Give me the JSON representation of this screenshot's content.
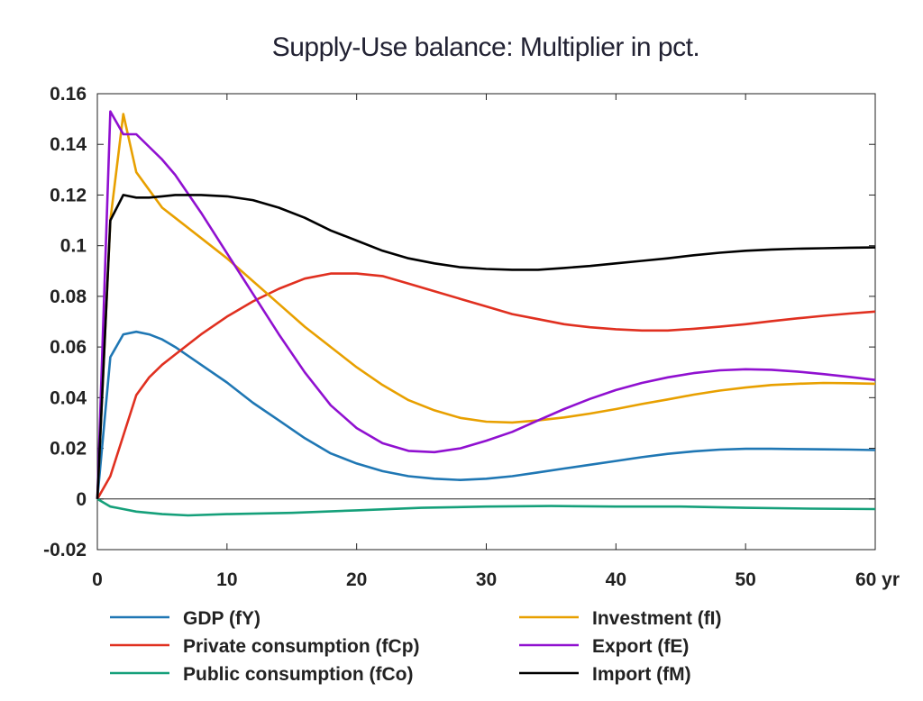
{
  "chart_data": {
    "type": "line",
    "title": "Supply-Use balance: Multiplier in pct.",
    "xlabel": "",
    "ylabel": "",
    "x_unit_label": "yr",
    "xlim": [
      0,
      60
    ],
    "ylim": [
      -0.02,
      0.16
    ],
    "x_ticks": [
      0,
      10,
      20,
      30,
      40,
      50,
      60
    ],
    "x_tick_labels": [
      "0",
      "10",
      "20",
      "30",
      "40",
      "50",
      "60 yr"
    ],
    "y_ticks": [
      -0.02,
      0,
      0.02,
      0.04,
      0.06,
      0.08,
      0.1,
      0.12,
      0.14,
      0.16
    ],
    "y_tick_labels": [
      "-0.02",
      "0",
      "0.02",
      "0.04",
      "0.06",
      "0.08",
      "0.1",
      "0.12",
      "0.14",
      "0.16"
    ],
    "grid": false,
    "zero_line": true,
    "legend_position": "bottom, two columns",
    "series": [
      {
        "name": "GDP (fY)",
        "color": "#1f77b4",
        "points": [
          [
            0,
            0
          ],
          [
            1,
            0.056
          ],
          [
            2,
            0.065
          ],
          [
            3,
            0.066
          ],
          [
            4,
            0.065
          ],
          [
            5,
            0.063
          ],
          [
            6,
            0.06
          ],
          [
            8,
            0.053
          ],
          [
            10,
            0.046
          ],
          [
            12,
            0.038
          ],
          [
            14,
            0.031
          ],
          [
            16,
            0.024
          ],
          [
            18,
            0.018
          ],
          [
            20,
            0.014
          ],
          [
            22,
            0.011
          ],
          [
            24,
            0.009
          ],
          [
            26,
            0.008
          ],
          [
            28,
            0.0075
          ],
          [
            30,
            0.008
          ],
          [
            32,
            0.009
          ],
          [
            34,
            0.0105
          ],
          [
            36,
            0.012
          ],
          [
            38,
            0.0135
          ],
          [
            40,
            0.015
          ],
          [
            42,
            0.0165
          ],
          [
            44,
            0.0178
          ],
          [
            46,
            0.0188
          ],
          [
            48,
            0.0195
          ],
          [
            50,
            0.0198
          ],
          [
            52,
            0.0198
          ],
          [
            54,
            0.0197
          ],
          [
            56,
            0.0196
          ],
          [
            58,
            0.0195
          ],
          [
            60,
            0.0193
          ]
        ]
      },
      {
        "name": "Private consumption (fCp)",
        "color": "#e03020",
        "points": [
          [
            0,
            0
          ],
          [
            1,
            0.009
          ],
          [
            2,
            0.025
          ],
          [
            3,
            0.041
          ],
          [
            4,
            0.048
          ],
          [
            5,
            0.053
          ],
          [
            6,
            0.057
          ],
          [
            8,
            0.065
          ],
          [
            10,
            0.072
          ],
          [
            12,
            0.078
          ],
          [
            14,
            0.083
          ],
          [
            16,
            0.087
          ],
          [
            18,
            0.089
          ],
          [
            20,
            0.089
          ],
          [
            22,
            0.088
          ],
          [
            24,
            0.085
          ],
          [
            26,
            0.082
          ],
          [
            28,
            0.079
          ],
          [
            30,
            0.076
          ],
          [
            32,
            0.073
          ],
          [
            34,
            0.071
          ],
          [
            36,
            0.069
          ],
          [
            38,
            0.0678
          ],
          [
            40,
            0.067
          ],
          [
            42,
            0.0665
          ],
          [
            44,
            0.0665
          ],
          [
            46,
            0.0672
          ],
          [
            48,
            0.068
          ],
          [
            50,
            0.069
          ],
          [
            52,
            0.0702
          ],
          [
            54,
            0.0713
          ],
          [
            56,
            0.0723
          ],
          [
            58,
            0.0732
          ],
          [
            60,
            0.074
          ]
        ]
      },
      {
        "name": "Public consumption (fCo)",
        "color": "#15a07a",
        "points": [
          [
            0,
            0
          ],
          [
            1,
            -0.003
          ],
          [
            2,
            -0.004
          ],
          [
            3,
            -0.005
          ],
          [
            4,
            -0.0055
          ],
          [
            5,
            -0.006
          ],
          [
            7,
            -0.0065
          ],
          [
            10,
            -0.006
          ],
          [
            15,
            -0.0055
          ],
          [
            20,
            -0.0045
          ],
          [
            25,
            -0.0035
          ],
          [
            30,
            -0.003
          ],
          [
            35,
            -0.0028
          ],
          [
            40,
            -0.003
          ],
          [
            45,
            -0.003
          ],
          [
            50,
            -0.0035
          ],
          [
            55,
            -0.0038
          ],
          [
            60,
            -0.004
          ]
        ]
      },
      {
        "name": "Investment (fI)",
        "color": "#e8a000",
        "points": [
          [
            0,
            0
          ],
          [
            1,
            0.11
          ],
          [
            2,
            0.152
          ],
          [
            3,
            0.129
          ],
          [
            4,
            0.122
          ],
          [
            5,
            0.115
          ],
          [
            6,
            0.111
          ],
          [
            8,
            0.103
          ],
          [
            10,
            0.095
          ],
          [
            12,
            0.086
          ],
          [
            14,
            0.077
          ],
          [
            16,
            0.068
          ],
          [
            18,
            0.06
          ],
          [
            20,
            0.052
          ],
          [
            22,
            0.045
          ],
          [
            24,
            0.039
          ],
          [
            26,
            0.035
          ],
          [
            28,
            0.032
          ],
          [
            30,
            0.0305
          ],
          [
            32,
            0.0302
          ],
          [
            34,
            0.031
          ],
          [
            36,
            0.0322
          ],
          [
            38,
            0.0337
          ],
          [
            40,
            0.0355
          ],
          [
            42,
            0.0375
          ],
          [
            44,
            0.0393
          ],
          [
            46,
            0.0412
          ],
          [
            48,
            0.0428
          ],
          [
            50,
            0.044
          ],
          [
            52,
            0.045
          ],
          [
            54,
            0.0455
          ],
          [
            56,
            0.0458
          ],
          [
            58,
            0.0457
          ],
          [
            60,
            0.0455
          ]
        ]
      },
      {
        "name": "Export (fE)",
        "color": "#9010d0",
        "points": [
          [
            0,
            0
          ],
          [
            1,
            0.153
          ],
          [
            2,
            0.144
          ],
          [
            3,
            0.144
          ],
          [
            4,
            0.139
          ],
          [
            5,
            0.134
          ],
          [
            6,
            0.128
          ],
          [
            8,
            0.113
          ],
          [
            10,
            0.097
          ],
          [
            12,
            0.081
          ],
          [
            14,
            0.065
          ],
          [
            16,
            0.05
          ],
          [
            18,
            0.037
          ],
          [
            20,
            0.028
          ],
          [
            22,
            0.022
          ],
          [
            24,
            0.019
          ],
          [
            26,
            0.0185
          ],
          [
            28,
            0.02
          ],
          [
            30,
            0.023
          ],
          [
            32,
            0.0265
          ],
          [
            34,
            0.031
          ],
          [
            36,
            0.0355
          ],
          [
            38,
            0.0395
          ],
          [
            40,
            0.043
          ],
          [
            42,
            0.0458
          ],
          [
            44,
            0.048
          ],
          [
            46,
            0.0497
          ],
          [
            48,
            0.0508
          ],
          [
            50,
            0.0512
          ],
          [
            52,
            0.051
          ],
          [
            54,
            0.0503
          ],
          [
            56,
            0.0493
          ],
          [
            58,
            0.0482
          ],
          [
            60,
            0.047
          ]
        ]
      },
      {
        "name": "Import (fM)",
        "color": "#000000",
        "points": [
          [
            0,
            0
          ],
          [
            1,
            0.11
          ],
          [
            2,
            0.12
          ],
          [
            3,
            0.119
          ],
          [
            4,
            0.119
          ],
          [
            5,
            0.1195
          ],
          [
            6,
            0.12
          ],
          [
            8,
            0.12
          ],
          [
            10,
            0.1195
          ],
          [
            12,
            0.118
          ],
          [
            14,
            0.115
          ],
          [
            16,
            0.111
          ],
          [
            18,
            0.106
          ],
          [
            20,
            0.102
          ],
          [
            22,
            0.098
          ],
          [
            24,
            0.095
          ],
          [
            26,
            0.093
          ],
          [
            28,
            0.0915
          ],
          [
            30,
            0.0908
          ],
          [
            32,
            0.0905
          ],
          [
            34,
            0.0905
          ],
          [
            36,
            0.0912
          ],
          [
            38,
            0.092
          ],
          [
            40,
            0.093
          ],
          [
            42,
            0.094
          ],
          [
            44,
            0.095
          ],
          [
            46,
            0.0962
          ],
          [
            48,
            0.0972
          ],
          [
            50,
            0.098
          ],
          [
            52,
            0.0985
          ],
          [
            54,
            0.0988
          ],
          [
            56,
            0.099
          ],
          [
            58,
            0.0992
          ],
          [
            60,
            0.0993
          ]
        ]
      }
    ]
  }
}
